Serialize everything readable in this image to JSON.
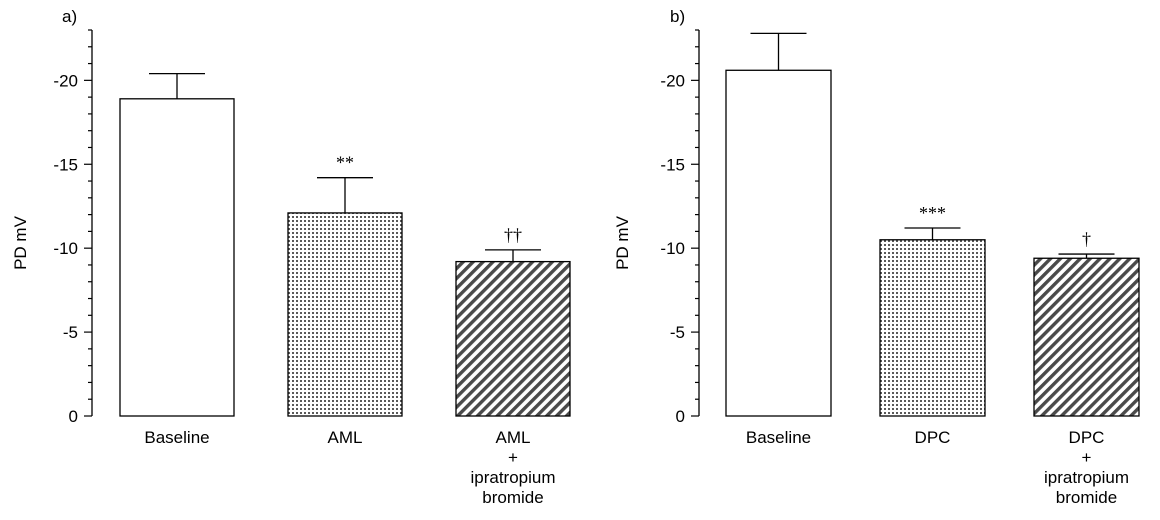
{
  "chart_data": [
    {
      "type": "bar",
      "panel_label": "a)",
      "ylabel": "PD mV",
      "ylim": [
        0,
        -23
      ],
      "yticks": [
        0,
        -5,
        -10,
        -15,
        -20
      ],
      "tick_labels": [
        "0",
        "-5",
        "-10",
        "-15",
        "-20"
      ],
      "categories": [
        "Baseline",
        "AML",
        "AML + ipratropium bromide"
      ],
      "category_label_lines": [
        [
          "Baseline"
        ],
        [
          "AML"
        ],
        [
          "AML",
          "+",
          "ipratropium",
          "bromide"
        ]
      ],
      "values": [
        -18.9,
        -12.1,
        -9.2
      ],
      "errors": [
        1.5,
        2.1,
        0.7
      ],
      "fills": [
        "white",
        "dots",
        "hatch"
      ],
      "annotations": [
        "",
        "**",
        "††"
      ],
      "grid": false
    },
    {
      "type": "bar",
      "panel_label": "b)",
      "ylabel": "PD mV",
      "ylim": [
        0,
        -23
      ],
      "yticks": [
        0,
        -5,
        -10,
        -15,
        -20
      ],
      "tick_labels": [
        "0",
        "-5",
        "-10",
        "-15",
        "-20"
      ],
      "categories": [
        "Baseline",
        "DPC",
        "DPC + ipratropium bromide"
      ],
      "category_label_lines": [
        [
          "Baseline"
        ],
        [
          "DPC"
        ],
        [
          "DPC",
          "+",
          "ipratropium",
          "bromide"
        ]
      ],
      "values": [
        -20.6,
        -10.5,
        -9.4
      ],
      "errors": [
        2.2,
        0.7,
        0.25
      ],
      "fills": [
        "white",
        "dots",
        "hatch"
      ],
      "annotations": [
        "",
        "***",
        "†"
      ],
      "grid": false
    }
  ]
}
